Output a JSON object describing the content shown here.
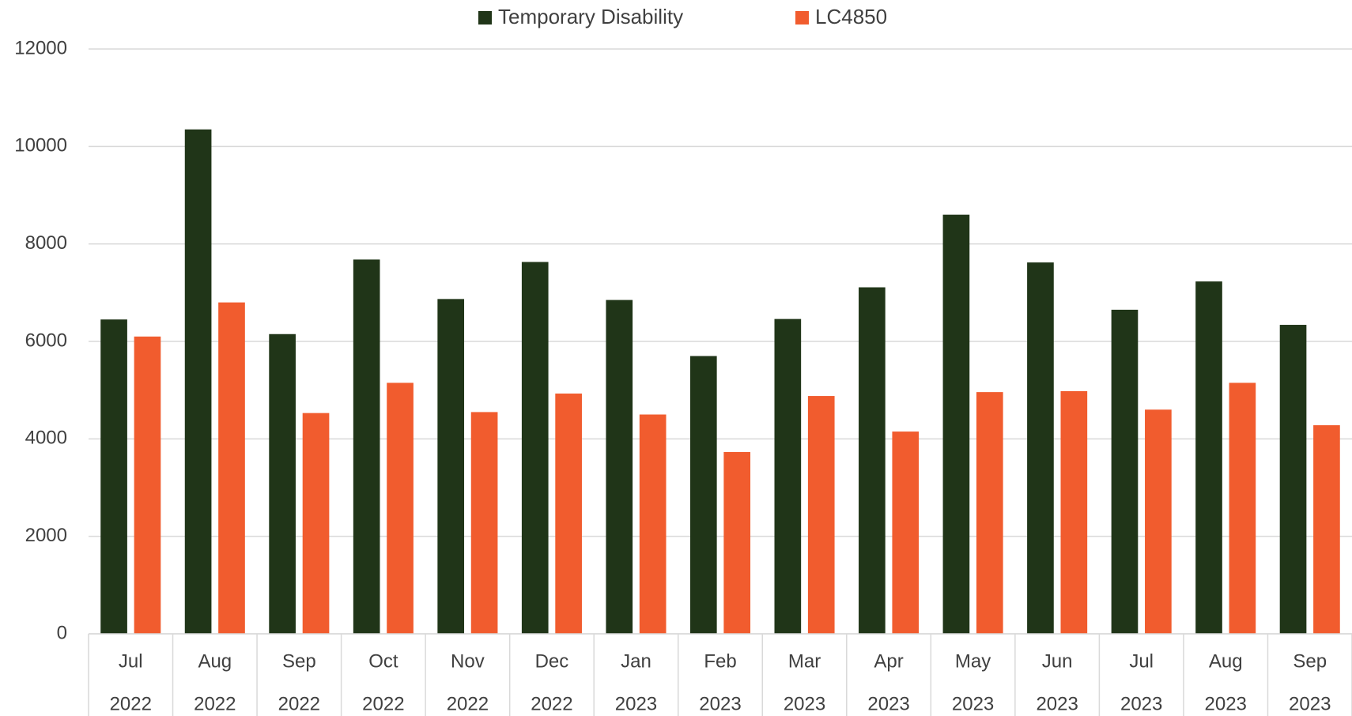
{
  "chart_data": {
    "type": "bar",
    "categories": [
      [
        "Jul",
        "2022"
      ],
      [
        "Aug",
        "2022"
      ],
      [
        "Sep",
        "2022"
      ],
      [
        "Oct",
        "2022"
      ],
      [
        "Nov",
        "2022"
      ],
      [
        "Dec",
        "2022"
      ],
      [
        "Jan",
        "2023"
      ],
      [
        "Feb",
        "2023"
      ],
      [
        "Mar",
        "2023"
      ],
      [
        "Apr",
        "2023"
      ],
      [
        "May",
        "2023"
      ],
      [
        "Jun",
        "2023"
      ],
      [
        "Jul",
        "2023"
      ],
      [
        "Aug",
        "2023"
      ],
      [
        "Sep",
        "2023"
      ]
    ],
    "series": [
      {
        "name": "Temporary Disability",
        "color": "#203518",
        "values": [
          6450,
          10350,
          6150,
          7680,
          6870,
          7630,
          6850,
          5700,
          6460,
          7110,
          8600,
          7620,
          6650,
          7230,
          6340
        ]
      },
      {
        "name": "LC4850",
        "color": "#f15c2e",
        "values": [
          6100,
          6800,
          4530,
          5150,
          4550,
          4930,
          4500,
          3730,
          4880,
          4150,
          4960,
          4980,
          4600,
          5150,
          4280
        ]
      }
    ],
    "ylim": [
      0,
      12000
    ],
    "yticks": [
      0,
      2000,
      4000,
      6000,
      8000,
      10000,
      12000
    ],
    "grid": true,
    "legend": "top"
  }
}
